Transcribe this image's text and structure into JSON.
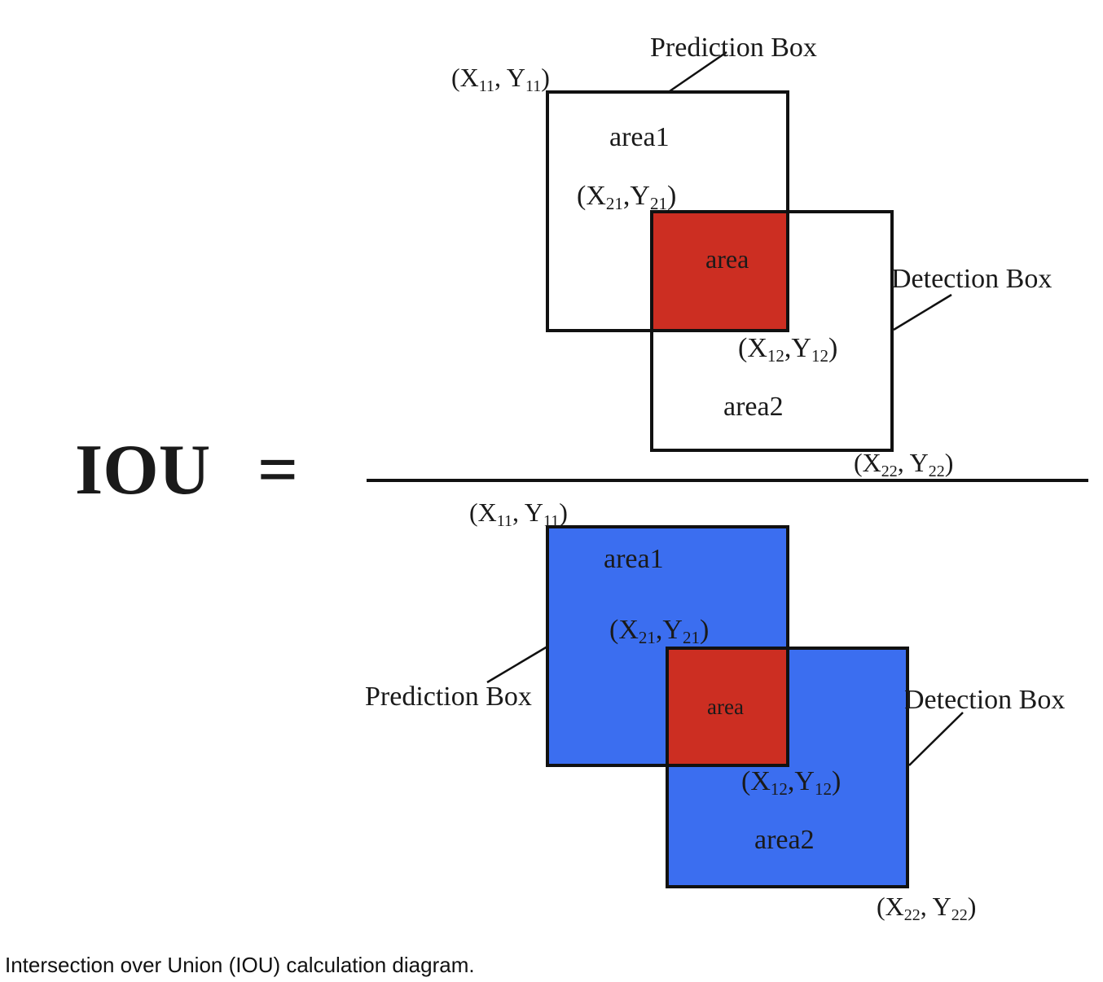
{
  "equation": {
    "lhs": "IOU",
    "equals": "="
  },
  "colors": {
    "intersection": "#cc2e22",
    "union": "#3b6ef0",
    "stroke": "#111111",
    "background": "#ffffff"
  },
  "numerator": {
    "prediction_box_label": "Prediction Box",
    "detection_box_label": "Detection Box",
    "area1_label": "area1",
    "intersection_label": "area",
    "area2_label": "area2",
    "coord_top_left": {
      "open": "(",
      "x": "X",
      "x_sub": "11",
      "sep": ", ",
      "y": "Y",
      "y_sub": "11",
      "close": ")"
    },
    "coord_inner_top_left": {
      "open": "(",
      "x": "X",
      "x_sub": "21",
      "sep": ",",
      "y": "Y",
      "y_sub": "21",
      "close": ")"
    },
    "coord_inner_bottom_right": {
      "open": "(",
      "x": "X",
      "x_sub": "12",
      "sep": ",",
      "y": "Y",
      "y_sub": "12",
      "close": ")"
    },
    "coord_bottom_right": {
      "open": "(",
      "x": "X",
      "x_sub": "22",
      "sep": ", ",
      "y": "Y",
      "y_sub": "22",
      "close": ")"
    }
  },
  "denominator": {
    "prediction_box_label": "Prediction Box",
    "detection_box_label": "Detection Box",
    "area1_label": "area1",
    "intersection_label": "area",
    "area2_label": "area2",
    "coord_top_left": {
      "open": "(",
      "x": "X",
      "x_sub": "11",
      "sep": ", ",
      "y": "Y",
      "y_sub": "11",
      "close": ")"
    },
    "coord_inner_top_left": {
      "open": "(",
      "x": "X",
      "x_sub": "21",
      "sep": ",",
      "y": "Y",
      "y_sub": "21",
      "close": ")"
    },
    "coord_inner_bottom_right": {
      "open": "(",
      "x": "X",
      "x_sub": "12",
      "sep": ",",
      "y": "Y",
      "y_sub": "12",
      "close": ")"
    },
    "coord_bottom_right": {
      "open": "(",
      "x": "X",
      "x_sub": "22",
      "sep": ", ",
      "y": "Y",
      "y_sub": "22",
      "close": ")"
    }
  },
  "caption": "Intersection over Union (IOU) calculation diagram."
}
